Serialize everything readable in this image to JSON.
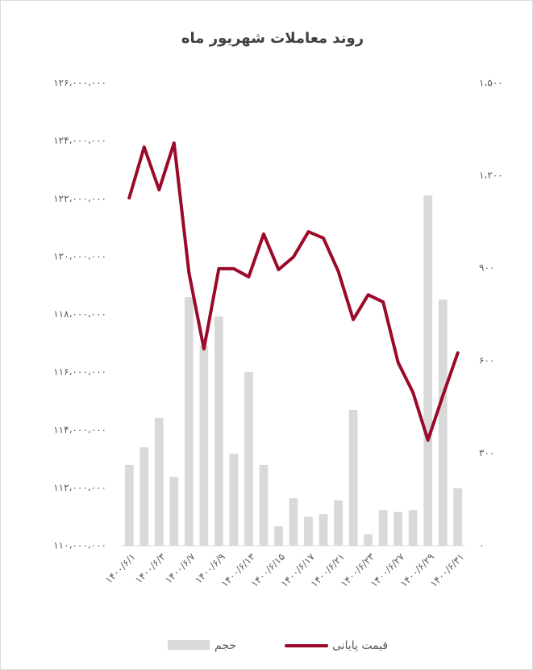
{
  "chart_data": {
    "type": "combo",
    "title": "روند معاملات شهریور ماه",
    "categories": [
      "۱۴۰۰/۶/۱",
      null,
      "۱۴۰۰/۶/۳",
      null,
      "۱۴۰۰/۶/۷",
      null,
      "۱۴۰۰/۶/۹",
      null,
      "۱۴۰۰/۶/۱۳",
      null,
      "۱۴۰۰/۶/۱۵",
      null,
      "۱۴۰۰/۶/۱۷",
      null,
      "۱۴۰۰/۶/۲۱",
      null,
      "۱۴۰۰/۶/۲۳",
      null,
      "۱۴۰۰/۶/۲۷",
      null,
      "۱۴۰۰/۶/۲۹",
      null,
      "۱۴۰۰/۶/۳۱"
    ],
    "series": [
      {
        "name": "حجم",
        "type": "bar",
        "axis": "y2",
        "color": "#d9d9d9",
        "values": [
          262,
          319,
          414,
          223,
          806,
          649,
          743,
          298,
          563,
          262,
          63,
          154,
          94,
          102,
          147,
          440,
          37,
          115,
          110,
          115,
          1136,
          798,
          186
        ]
      },
      {
        "name": "قیمت پایانی",
        "type": "line",
        "axis": "y",
        "color": "#9b0a2a",
        "values": [
          122030000,
          123790000,
          122310000,
          123930000,
          119440000,
          116810000,
          119580000,
          119580000,
          119300000,
          120780000,
          119550000,
          119990000,
          120860000,
          120640000,
          119490000,
          117820000,
          118680000,
          118430000,
          116340000,
          115300000,
          113650000,
          115190000,
          116670000
        ]
      }
    ],
    "ylim": [
      110000000,
      126000000
    ],
    "yticks": [
      {
        "value": 110000000,
        "label": "۱۱۰،۰۰۰،۰۰۰"
      },
      {
        "value": 112000000,
        "label": "۱۱۲،۰۰۰،۰۰۰"
      },
      {
        "value": 114000000,
        "label": "۱۱۴،۰۰۰،۰۰۰"
      },
      {
        "value": 116000000,
        "label": "۱۱۶،۰۰۰،۰۰۰"
      },
      {
        "value": 118000000,
        "label": "۱۱۸،۰۰۰،۰۰۰"
      },
      {
        "value": 120000000,
        "label": "۱۲۰،۰۰۰،۰۰۰"
      },
      {
        "value": 122000000,
        "label": "۱۲۲،۰۰۰،۰۰۰"
      },
      {
        "value": 124000000,
        "label": "۱۲۴،۰۰۰،۰۰۰"
      },
      {
        "value": 126000000,
        "label": "۱۲۶،۰۰۰،۰۰۰"
      }
    ],
    "y2lim": [
      0,
      1500
    ],
    "y2ticks": [
      {
        "value": 0,
        "label": "۰"
      },
      {
        "value": 300,
        "label": "۳۰۰"
      },
      {
        "value": 600,
        "label": "۶۰۰"
      },
      {
        "value": 900,
        "label": "۹۰۰"
      },
      {
        "value": 1200,
        "label": "۱،۲۰۰"
      },
      {
        "value": 1500,
        "label": "۱،۵۰۰"
      }
    ],
    "grid": false,
    "legend": "bottom"
  }
}
